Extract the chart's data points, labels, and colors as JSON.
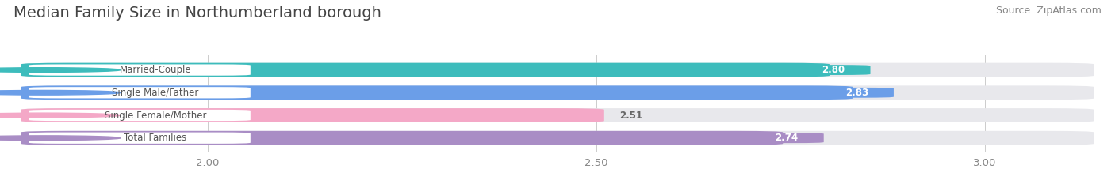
{
  "title": "Median Family Size in Northumberland borough",
  "source": "Source: ZipAtlas.com",
  "categories": [
    "Married-Couple",
    "Single Male/Father",
    "Single Female/Mother",
    "Total Families"
  ],
  "values": [
    2.8,
    2.83,
    2.51,
    2.74
  ],
  "bar_colors": [
    "#3dbcbc",
    "#6b9ee8",
    "#f4a8c7",
    "#a98dc5"
  ],
  "bar_bg_colors": [
    "#eeeeee",
    "#eeeeee",
    "#eeeeee",
    "#eeeeee"
  ],
  "value_colors": [
    "#ffffff",
    "#ffffff",
    "#777777",
    "#ffffff"
  ],
  "xlim_data": [
    2.0,
    3.0
  ],
  "xlim_plot": [
    1.75,
    3.15
  ],
  "xticks": [
    2.0,
    2.5,
    3.0
  ],
  "title_fontsize": 14,
  "source_fontsize": 9,
  "bar_height": 0.62,
  "figsize": [
    14.06,
    2.33
  ],
  "dpi": 100
}
